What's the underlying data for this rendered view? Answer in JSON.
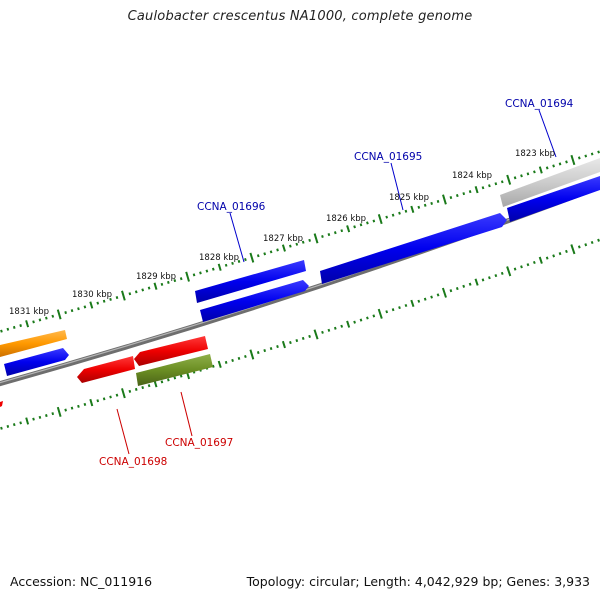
{
  "title": "Caulobacter crescentus NA1000, complete genome",
  "accession": "Accession: NC_011916",
  "summary": "Topology: circular; Length: 4,042,929 bp; Genes: 3,933",
  "colors": {
    "backbone": "#8a8a8a",
    "tick": "#1a7a1a",
    "forward_cds": "#0000ee",
    "reverse_cds": "#ee0000",
    "orange_feature": "#ff9900",
    "olive_feature": "#6b8e23",
    "gray_feature": "#cccccc",
    "forward_label": "#0000aa",
    "reverse_label": "#cc0000"
  },
  "scale_labels": [
    "1823 kbp",
    "1824 kbp",
    "1825 kbp",
    "1826 kbp",
    "1827 kbp",
    "1828 kbp",
    "1829 kbp",
    "1830 kbp",
    "1831 kbp"
  ],
  "gene_labels": [
    {
      "id": "ccna-01694",
      "text": "CCNA_01694",
      "strand": "forward"
    },
    {
      "id": "ccna-01695",
      "text": "CCNA_01695",
      "strand": "forward"
    },
    {
      "id": "ccna-01696",
      "text": "CCNA_01696",
      "strand": "forward"
    },
    {
      "id": "ccna-01697",
      "text": "CCNA_01697",
      "strand": "reverse"
    },
    {
      "id": "ccna-01698",
      "text": "CCNA_01698",
      "strand": "reverse"
    }
  ]
}
